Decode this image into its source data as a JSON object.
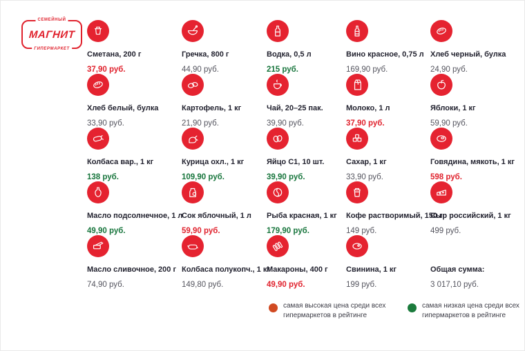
{
  "logo": {
    "top": "СЕМЕЙНЫЙ",
    "main": "МАГНИТ",
    "bottom": "ГИПЕРМАРКЕТ"
  },
  "colors": {
    "brand_red": "#e52330",
    "price_high": "#e0222d",
    "price_low": "#17753c",
    "price_normal": "#55555f",
    "text_dark": "#22222f",
    "legend_high_dot": "#d14a22",
    "legend_low_dot": "#1b7b3c"
  },
  "products": [
    {
      "name": "Сметана, 200 г",
      "price": "37,90 руб.",
      "status": "high",
      "icon": "sour-cream-icon"
    },
    {
      "name": "Гречка, 800 г",
      "price": "44,90 руб.",
      "status": "normal",
      "icon": "porridge-bowl-icon"
    },
    {
      "name": "Водка, 0,5 л",
      "price": "215 руб.",
      "status": "low",
      "icon": "vodka-bottle-icon"
    },
    {
      "name": "Вино красное, 0,75 л",
      "price": "169,90 руб.",
      "status": "normal",
      "icon": "wine-bottle-icon"
    },
    {
      "name": "Хлеб черный, булка",
      "price": "24,90 руб.",
      "status": "normal",
      "icon": "bread-loaf-icon"
    },
    {
      "name": "Хлеб белый, булка",
      "price": "33,90 руб.",
      "status": "normal",
      "icon": "bread-loaf-icon"
    },
    {
      "name": "Картофель, 1 кг",
      "price": "21,90 руб.",
      "status": "normal",
      "icon": "potatoes-icon"
    },
    {
      "name": "Чай, 20–25 пак.",
      "price": "39,90 руб.",
      "status": "normal",
      "icon": "tea-cup-icon"
    },
    {
      "name": "Молоко, 1 л",
      "price": "37,90 руб.",
      "status": "high",
      "icon": "milk-carton-icon"
    },
    {
      "name": "Яблоки, 1 кг",
      "price": "59,90 руб.",
      "status": "normal",
      "icon": "apple-icon"
    },
    {
      "name": "Колбаса вар., 1 кг",
      "price": "138 руб.",
      "status": "low",
      "icon": "boiled-sausage-icon"
    },
    {
      "name": "Курица охл., 1 кг",
      "price": "109,90 руб.",
      "status": "low",
      "icon": "chicken-icon"
    },
    {
      "name": "Яйцо С1, 10 шт.",
      "price": "39,90 руб.",
      "status": "low",
      "icon": "eggs-icon"
    },
    {
      "name": "Сахар, 1 кг",
      "price": "33,90 руб.",
      "status": "normal",
      "icon": "sugar-cubes-icon"
    },
    {
      "name": "Говядина, мякоть, 1 кг",
      "price": "598 руб.",
      "status": "high",
      "icon": "beef-meat-icon"
    },
    {
      "name": "Масло подсолнечное, 1 л",
      "price": "49,90 руб.",
      "status": "low",
      "icon": "oil-bottle-icon"
    },
    {
      "name": "Сок яблочный, 1 л",
      "price": "59,90 руб.",
      "status": "high",
      "icon": "juice-jug-icon"
    },
    {
      "name": "Рыба красная, 1 кг",
      "price": "179,90 руб.",
      "status": "low",
      "icon": "fish-icon"
    },
    {
      "name": "Кофе растворимый, 150 г",
      "price": "149 руб.",
      "status": "normal",
      "icon": "coffee-cup-icon"
    },
    {
      "name": "Сыр российский, 1 кг",
      "price": "499 руб.",
      "status": "normal",
      "icon": "cheese-icon"
    },
    {
      "name": "Масло сливочное, 200 г",
      "price": "74,90 руб.",
      "status": "normal",
      "icon": "butter-icon"
    },
    {
      "name": "Колбаса полукопч., 1 кг",
      "price": "149,80 руб.",
      "status": "normal",
      "icon": "smoked-sausage-icon"
    },
    {
      "name": "Макароны, 400 г",
      "price": "49,90 руб.",
      "status": "high",
      "icon": "pasta-icon"
    },
    {
      "name": "Свинина, 1 кг",
      "price": "199 руб.",
      "status": "normal",
      "icon": "pork-meat-icon"
    }
  ],
  "total": {
    "label": "Общая сумма:",
    "value": "3 017,10 руб."
  },
  "legend": [
    {
      "dot": "high",
      "text": "самая высокая цена среди всех гипермаркетов в рейтинге"
    },
    {
      "dot": "low",
      "text": "самая низкая цена среди всех гипермаркетов в рейтинге"
    }
  ]
}
